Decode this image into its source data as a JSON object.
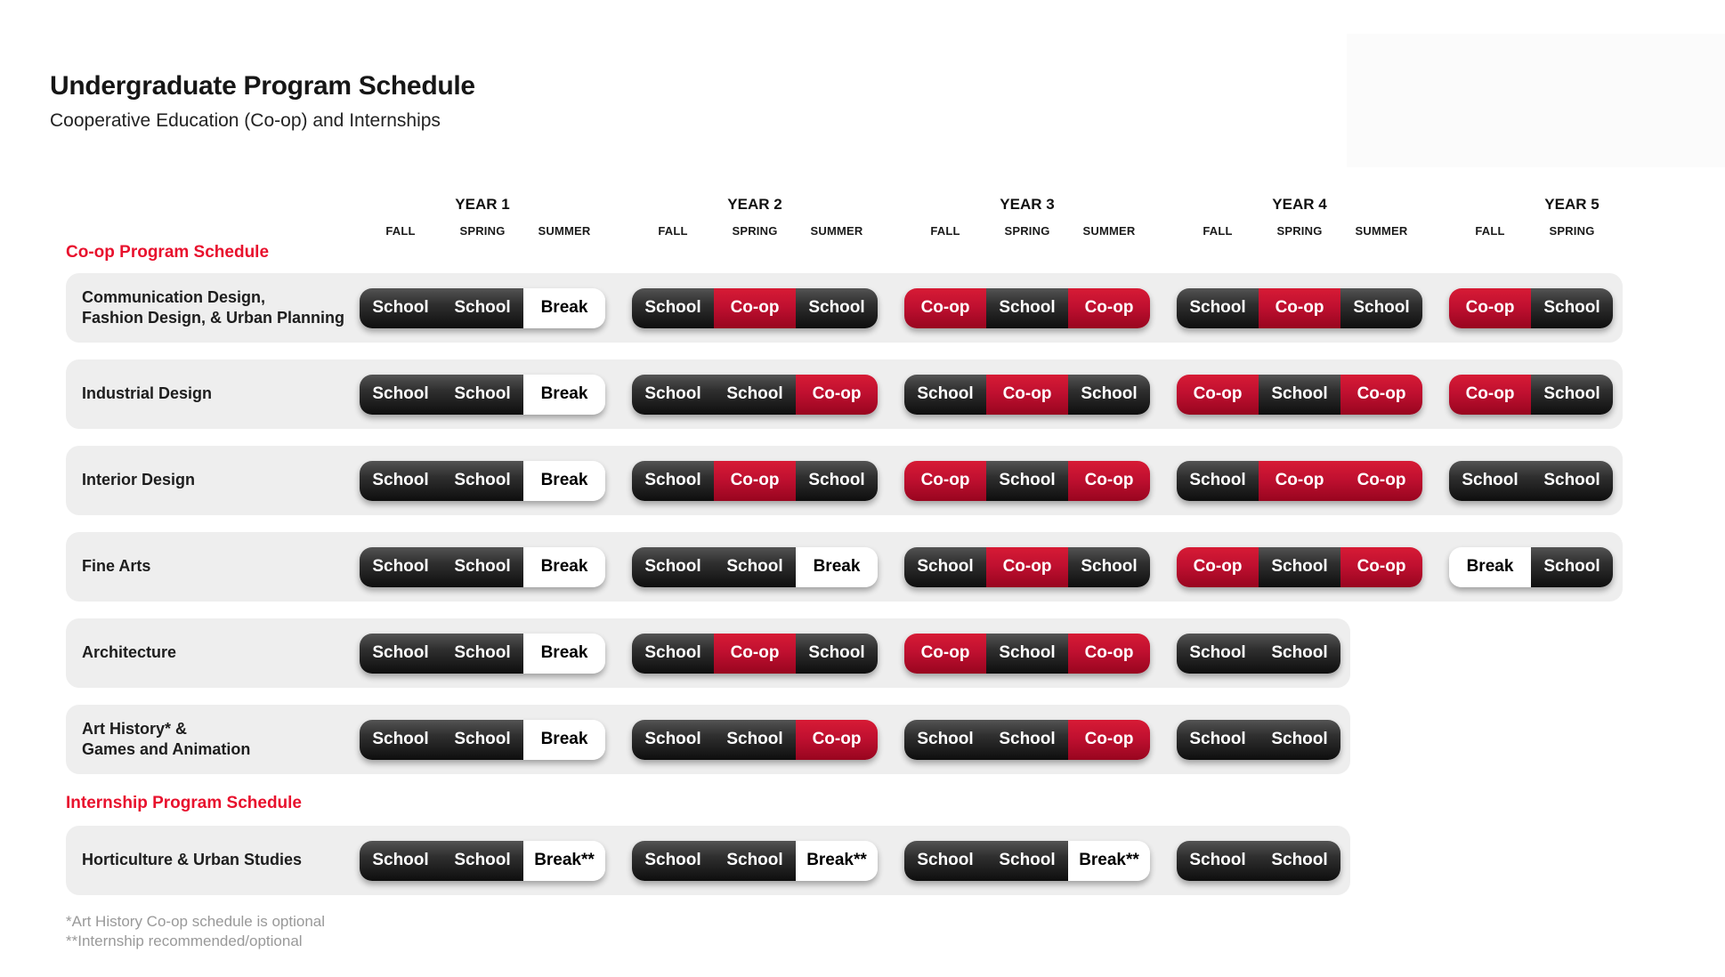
{
  "page": {
    "title": "Undergraduate Program Schedule",
    "subtitle": "Cooperative Education (Co-op) and Internships"
  },
  "years": [
    {
      "label": "YEAR 1",
      "semesters": [
        "FALL",
        "SPRING",
        "SUMMER"
      ]
    },
    {
      "label": "YEAR 2",
      "semesters": [
        "FALL",
        "SPRING",
        "SUMMER"
      ]
    },
    {
      "label": "YEAR 3",
      "semesters": [
        "FALL",
        "SPRING",
        "SUMMER"
      ]
    },
    {
      "label": "YEAR 4",
      "semesters": [
        "FALL",
        "SPRING",
        "SUMMER"
      ]
    },
    {
      "label": "YEAR 5",
      "semesters": [
        "FALL",
        "SPRING"
      ]
    }
  ],
  "sections": [
    {
      "label": "Co-op Program Schedule",
      "rows": [
        {
          "program_lines": [
            "Communication Design,",
            "Fashion Design, & Urban Planning"
          ],
          "year_groups": [
            [
              "School",
              "School",
              "Break"
            ],
            [
              "School",
              "Co-op",
              "School"
            ],
            [
              "Co-op",
              "School",
              "Co-op"
            ],
            [
              "School",
              "Co-op",
              "School"
            ],
            [
              "Co-op",
              "School"
            ]
          ]
        },
        {
          "program_lines": [
            "Industrial Design"
          ],
          "year_groups": [
            [
              "School",
              "School",
              "Break"
            ],
            [
              "School",
              "School",
              "Co-op"
            ],
            [
              "School",
              "Co-op",
              "School"
            ],
            [
              "Co-op",
              "School",
              "Co-op"
            ],
            [
              "Co-op",
              "School"
            ]
          ]
        },
        {
          "program_lines": [
            "Interior Design"
          ],
          "year_groups": [
            [
              "School",
              "School",
              "Break"
            ],
            [
              "School",
              "Co-op",
              "School"
            ],
            [
              "Co-op",
              "School",
              "Co-op"
            ],
            [
              "School",
              "Co-op",
              "Co-op"
            ],
            [
              "School",
              "School"
            ]
          ]
        },
        {
          "program_lines": [
            "Fine Arts"
          ],
          "year_groups": [
            [
              "School",
              "School",
              "Break"
            ],
            [
              "School",
              "School",
              "Break"
            ],
            [
              "School",
              "Co-op",
              "School"
            ],
            [
              "Co-op",
              "School",
              "Co-op"
            ],
            [
              "Break",
              "School"
            ]
          ]
        },
        {
          "program_lines": [
            "Architecture"
          ],
          "year_groups": [
            [
              "School",
              "School",
              "Break"
            ],
            [
              "School",
              "Co-op",
              "School"
            ],
            [
              "Co-op",
              "School",
              "Co-op"
            ],
            [
              "School",
              "School"
            ]
          ]
        },
        {
          "program_lines": [
            "Art History* &",
            "Games and Animation"
          ],
          "year_groups": [
            [
              "School",
              "School",
              "Break"
            ],
            [
              "School",
              "School",
              "Co-op"
            ],
            [
              "School",
              "School",
              "Co-op"
            ],
            [
              "School",
              "School"
            ]
          ]
        }
      ]
    },
    {
      "label": "Internship Program Schedule",
      "rows": [
        {
          "program_lines": [
            "Horticulture & Urban Studies"
          ],
          "year_groups": [
            [
              "School",
              "School",
              "Break**"
            ],
            [
              "School",
              "School",
              "Break**"
            ],
            [
              "School",
              "School",
              "Break**"
            ],
            [
              "School",
              "School"
            ]
          ]
        }
      ]
    }
  ],
  "footnotes": [
    "*Art History Co-op schedule is optional",
    "**Internship recommended/optional"
  ],
  "colors": {
    "accent_red": "#e8112d",
    "coop_red": "#c01030",
    "school_dark": "#1d1d1d",
    "break_bg": "#ffffff",
    "row_bg": "#eeeeee"
  }
}
